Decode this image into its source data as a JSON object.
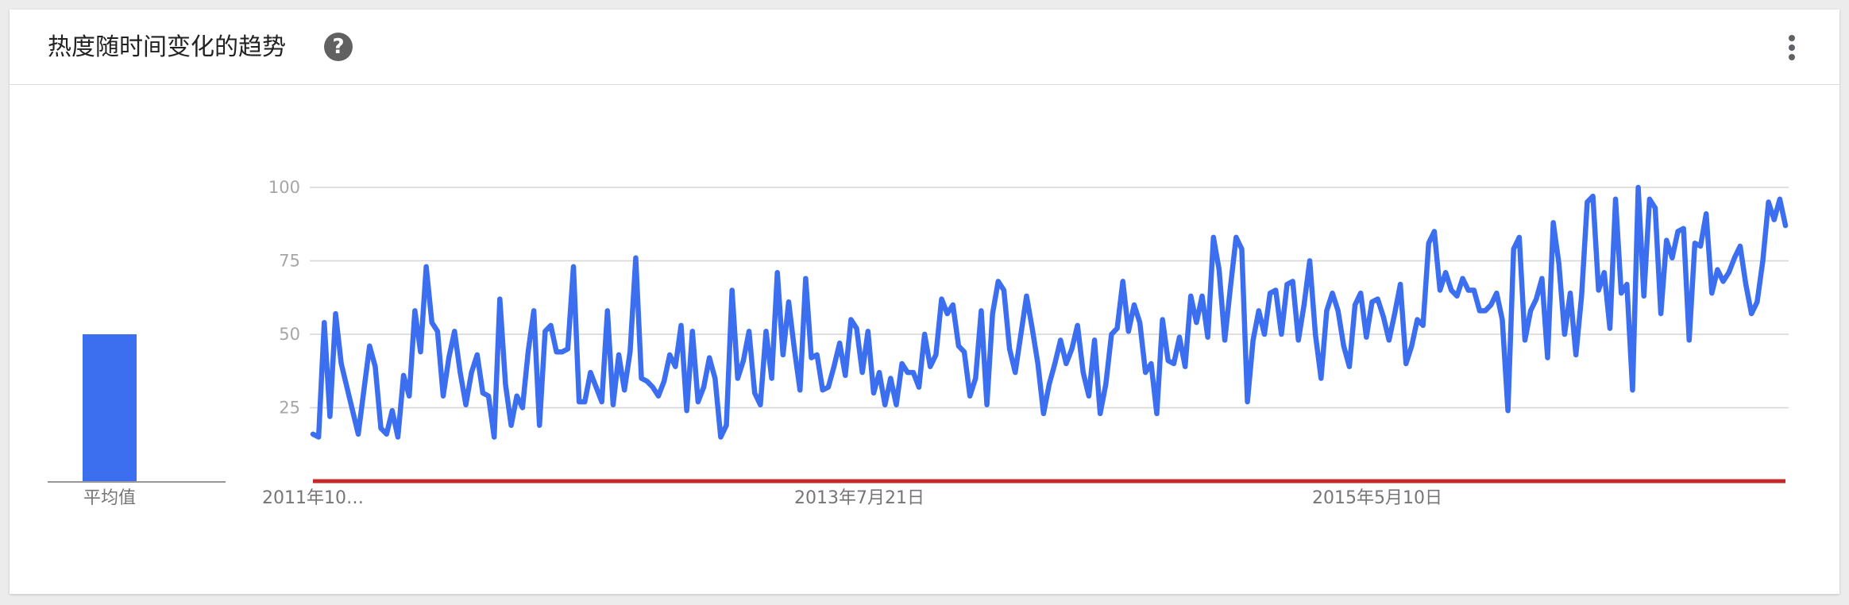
{
  "header": {
    "title": "热度随时间变化的趋势",
    "help_icon": "?"
  },
  "colors": {
    "series": "#3c6ef0",
    "baseline": "#c62828",
    "grid": "#d6d6d6",
    "help_icon_bg": "#616161"
  },
  "chart_data": [
    {
      "type": "bar",
      "categories": [
        "平均值"
      ],
      "values": [
        50
      ],
      "ylim": [
        0,
        100
      ]
    },
    {
      "type": "line",
      "x_tick_labels": [
        "2011年10…",
        "2013年7月21日",
        "2015年5月10日"
      ],
      "y_ticks": [
        25,
        50,
        75,
        100
      ],
      "ylim": [
        0,
        100
      ],
      "grid": true,
      "series": [
        {
          "values": [
            16,
            15,
            54,
            22,
            57,
            40,
            32,
            24,
            16,
            31,
            46,
            39,
            18,
            16,
            24,
            15,
            36,
            29,
            58,
            44,
            73,
            54,
            51,
            29,
            42,
            51,
            37,
            26,
            37,
            43,
            30,
            29,
            15,
            62,
            33,
            19,
            29,
            25,
            44,
            58,
            19,
            51,
            53,
            44,
            44,
            45,
            73,
            27,
            27,
            37,
            32,
            27,
            58,
            26,
            43,
            31,
            44,
            76,
            35,
            34,
            32,
            29,
            34,
            43,
            39,
            53,
            24,
            51,
            27,
            32,
            42,
            35,
            15,
            19,
            65,
            35,
            41,
            51,
            30,
            26,
            51,
            35,
            71,
            43,
            61,
            45,
            31,
            69,
            42,
            43,
            31,
            32,
            39,
            47,
            36,
            55,
            52,
            37,
            51,
            30,
            37,
            26,
            35,
            26,
            40,
            37,
            37,
            32,
            50,
            39,
            43,
            62,
            57,
            60,
            46,
            44,
            29,
            35,
            58,
            26,
            57,
            68,
            65,
            45,
            37,
            50,
            63,
            52,
            40,
            23,
            33,
            40,
            48,
            40,
            45,
            53,
            37,
            29,
            48,
            23,
            33,
            50,
            52,
            68,
            51,
            60,
            54,
            37,
            40,
            23,
            55,
            41,
            40,
            49,
            39,
            63,
            54,
            63,
            49,
            83,
            72,
            48,
            66,
            83,
            79,
            27,
            48,
            58,
            50,
            64,
            65,
            50,
            67,
            68,
            48,
            60,
            75,
            50,
            35,
            58,
            64,
            58,
            46,
            39,
            60,
            64,
            49,
            61,
            62,
            56,
            48,
            57,
            67,
            40,
            46,
            55,
            53,
            81,
            85,
            65,
            71,
            65,
            63,
            69,
            65,
            65,
            58,
            58,
            60,
            64,
            55,
            24,
            79,
            83,
            48,
            58,
            62,
            69,
            42,
            88,
            74,
            50,
            64,
            43,
            63,
            95,
            97,
            65,
            71,
            52,
            96,
            64,
            67,
            31,
            100,
            63,
            96,
            93,
            57,
            82,
            76,
            85,
            86,
            48,
            81,
            80,
            91,
            64,
            72,
            68,
            71,
            76,
            80,
            67,
            57,
            61,
            75,
            95,
            89,
            96,
            87
          ]
        },
        {
          "values": [
            0,
            0
          ]
        }
      ]
    }
  ]
}
